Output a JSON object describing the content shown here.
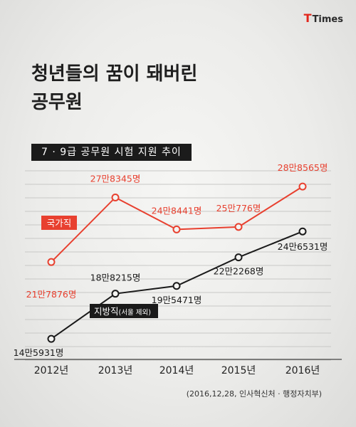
{
  "logo": {
    "mark": "T",
    "text": "Times"
  },
  "header": {
    "title_bold": "청년들의 꿈",
    "title_rest": "이 돼버린",
    "title_line2": "공무원",
    "subtitle": "7 · 9급 공무원 시험 지원 추이"
  },
  "source": "(2016,12,28, 인사혁신처 · 행정자치부)",
  "chart_data": {
    "type": "line",
    "categories": [
      "2012년",
      "2013년",
      "2014년",
      "2015년",
      "2016년"
    ],
    "series": [
      {
        "name": "국가직",
        "name_suffix": "",
        "color": "#e8402f",
        "values": [
          217876,
          278345,
          248441,
          250776,
          288565
        ],
        "labels": [
          "21만7876명",
          "27만8345명",
          "24만8441명",
          "25만776명",
          "28만8565명"
        ]
      },
      {
        "name": "지방직",
        "name_suffix": "(서울 제외)",
        "color": "#1a1a1a",
        "values": [
          145931,
          188215,
          195471,
          222268,
          246531
        ],
        "labels": [
          "14만5931명",
          "18만8215명",
          "19만5471명",
          "22만2268명",
          "24만6531명"
        ]
      }
    ],
    "ylim": [
      130000,
      300000
    ],
    "grid": true
  }
}
